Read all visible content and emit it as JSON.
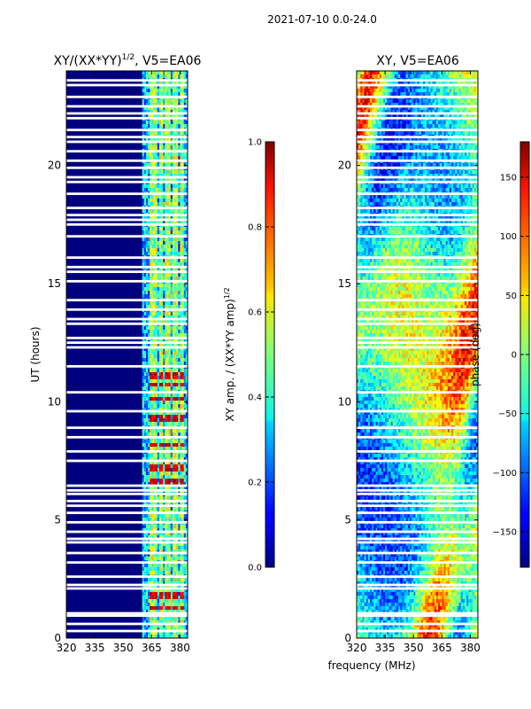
{
  "suptitle": "2021-07-10 0.0-24.0",
  "colors": {
    "band_white": "#ffffff",
    "navy": "#00007f",
    "frame": "#000000"
  },
  "chart_data": [
    {
      "type": "heatmap",
      "title": "XY/(XX*YY)¹ᐟ², V5=EA06",
      "title_parts": {
        "main": "XY/(XX*YY)",
        "exp": "1/2",
        "suffix": ", V5=EA06"
      },
      "xlabel": "",
      "ylabel": "UT (hours)",
      "xlim": [
        320,
        384
      ],
      "ylim": [
        0,
        24
      ],
      "xticks": [
        320,
        335,
        350,
        365,
        380
      ],
      "yticks": [
        0,
        5,
        10,
        15,
        20
      ],
      "hot_rows_hours": [
        1.3,
        1.8,
        6.6,
        7.2,
        8.2,
        9.3,
        10.1,
        10.7,
        11.1
      ]
    },
    {
      "type": "colorbar",
      "label": "XY amp. / (XX*YY amp)",
      "label_exp": "1/2",
      "range": [
        0.0,
        1.0
      ],
      "ticks": [
        "0.0",
        "0.2",
        "0.4",
        "0.6",
        "0.8",
        "1.0"
      ]
    },
    {
      "type": "heatmap",
      "title": "XY, V5=EA06",
      "xlabel": "frequency (MHz)",
      "ylabel": "",
      "xlim": [
        320,
        384
      ],
      "ylim": [
        0,
        24
      ],
      "xticks": [
        320,
        335,
        350,
        365,
        380
      ],
      "yticks": [
        0,
        5,
        10,
        15,
        20
      ]
    },
    {
      "type": "colorbar",
      "label": "phase (deg)",
      "range": [
        -180,
        180
      ],
      "ticks": [
        -150,
        -100,
        -50,
        0,
        50,
        100,
        150
      ]
    }
  ],
  "blank_rows_hours": [
    0.3,
    0.6,
    0.95,
    1.05,
    2.1,
    2.25,
    2.6,
    3.2,
    3.6,
    4.05,
    4.2,
    4.5,
    4.9,
    5.3,
    5.6,
    5.8,
    6.1,
    6.25,
    6.45,
    7.5,
    7.9,
    8.5,
    8.9,
    9.6,
    10.4,
    11.5,
    12.3,
    12.5,
    12.7,
    13.3,
    13.5,
    13.9,
    14.3,
    15.1,
    15.5,
    15.7,
    16.1,
    17.0,
    17.5,
    17.7,
    17.9,
    18.2,
    18.8,
    19.3,
    19.5,
    19.9,
    20.2,
    20.6,
    21.0,
    21.2,
    21.5,
    22.0,
    22.2,
    22.5,
    22.9,
    23.4,
    23.6
  ]
}
